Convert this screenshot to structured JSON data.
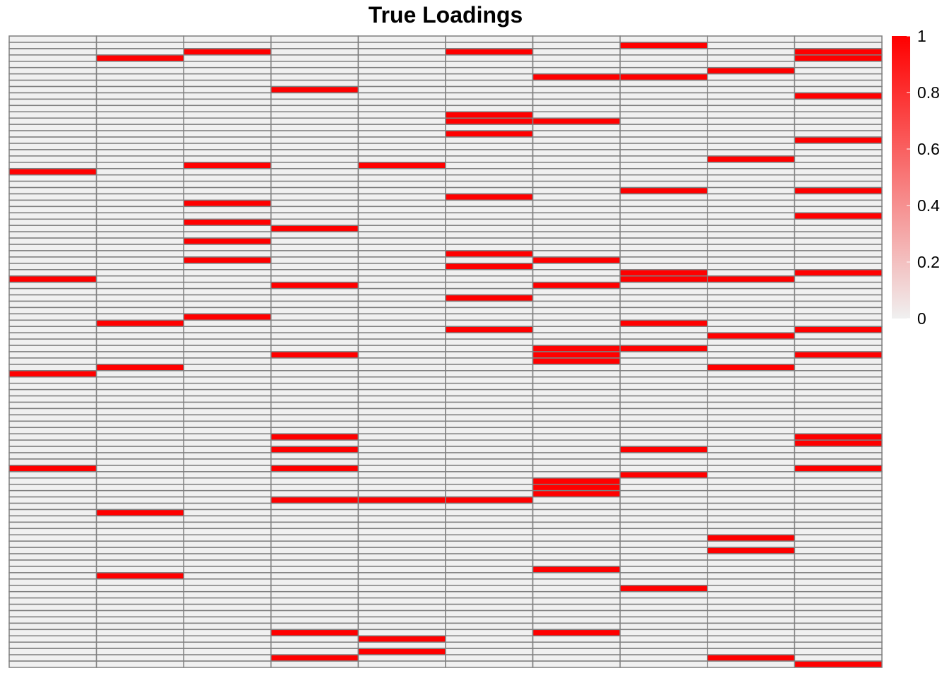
{
  "chart_data": {
    "type": "heatmap",
    "title": "True Loadings",
    "n_rows": 100,
    "n_cols": 10,
    "value_range": [
      0,
      1
    ],
    "low_color": "#F0F0F0",
    "high_color": "#FF0000",
    "grid_color": "#7F7F7F",
    "legend": {
      "position": "right",
      "ticks": [
        {
          "value": 0,
          "label": "0"
        },
        {
          "value": 0.2,
          "label": "0.2"
        },
        {
          "value": 0.4,
          "label": "0.4"
        },
        {
          "value": 0.6,
          "label": "0.6"
        },
        {
          "value": 0.8,
          "label": "0.8"
        },
        {
          "value": 1,
          "label": "1"
        }
      ]
    },
    "nonzero_cells": [
      {
        "col": 0,
        "rows": [
          21,
          38,
          53,
          68
        ]
      },
      {
        "col": 1,
        "rows": [
          3,
          45,
          52,
          75,
          85
        ]
      },
      {
        "col": 2,
        "rows": [
          2,
          20,
          26,
          29,
          32,
          35,
          44
        ]
      },
      {
        "col": 3,
        "rows": [
          8,
          30,
          39,
          50,
          63,
          65,
          68,
          73,
          94,
          98
        ]
      },
      {
        "col": 4,
        "rows": [
          20,
          73,
          95,
          97
        ]
      },
      {
        "col": 5,
        "rows": [
          2,
          12,
          13,
          15,
          25,
          34,
          36,
          41,
          46,
          73
        ]
      },
      {
        "col": 6,
        "rows": [
          6,
          13,
          35,
          39,
          49,
          50,
          51,
          70,
          71,
          72,
          84,
          94
        ]
      },
      {
        "col": 7,
        "rows": [
          1,
          6,
          24,
          37,
          38,
          45,
          49,
          65,
          69,
          87
        ]
      },
      {
        "col": 8,
        "rows": [
          5,
          19,
          38,
          47,
          52,
          79,
          81,
          98
        ]
      },
      {
        "col": 9,
        "rows": [
          2,
          3,
          9,
          16,
          24,
          28,
          37,
          46,
          50,
          63,
          64,
          68,
          99
        ]
      }
    ]
  }
}
